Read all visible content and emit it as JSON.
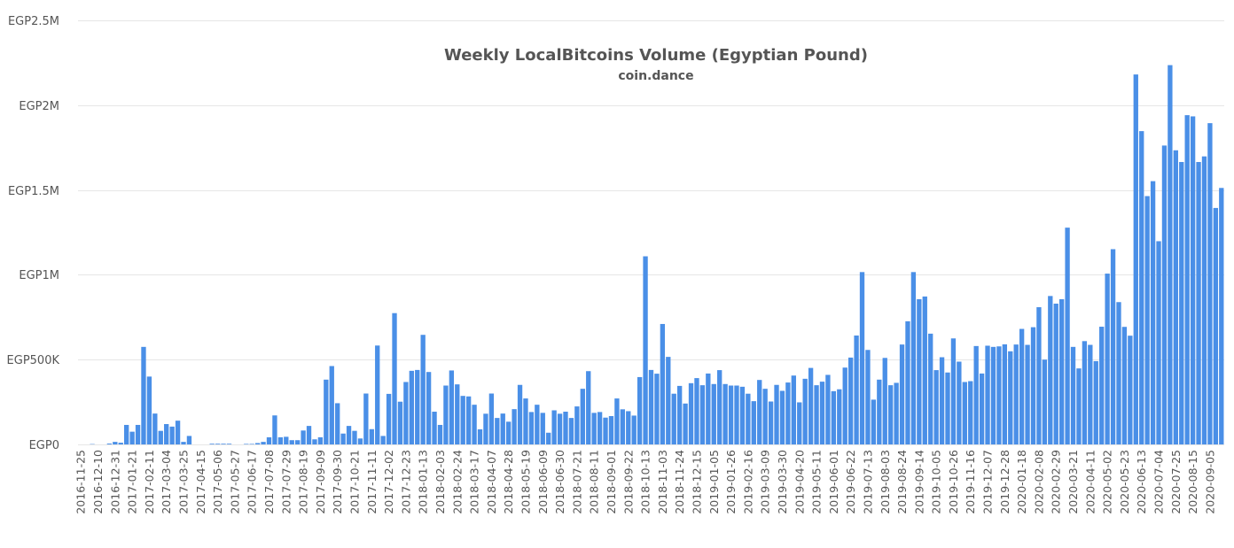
{
  "chart_data": {
    "type": "bar",
    "title": "Weekly LocalBitcoins Volume (Egyptian Pound)",
    "subtitle": "coin.dance",
    "xlabel": "",
    "ylabel": "",
    "ylim": [
      0,
      2500000
    ],
    "grid": true,
    "legend": "none",
    "bar_color": "#4a8fe7",
    "y_ticks": [
      {
        "value": 0,
        "label": "EGP0"
      },
      {
        "value": 500000,
        "label": "EGP500K"
      },
      {
        "value": 1000000,
        "label": "EGP1M"
      },
      {
        "value": 1500000,
        "label": "EGP1.5M"
      },
      {
        "value": 2000000,
        "label": "EGP2M"
      },
      {
        "value": 2500000,
        "label": "EGP2.5M"
      }
    ],
    "x_tick_labels": [
      "2016-11-25",
      "2016-12-10",
      "2016-12-31",
      "2017-01-21",
      "2017-02-11",
      "2017-03-04",
      "2017-03-25",
      "2017-04-15",
      "2017-05-06",
      "2017-05-27",
      "2017-06-17",
      "2017-07-08",
      "2017-07-29",
      "2017-08-19",
      "2017-09-09",
      "2017-09-30",
      "2017-10-21",
      "2017-11-11",
      "2017-12-02",
      "2017-12-23",
      "2018-01-13",
      "2018-02-03",
      "2018-02-24",
      "2018-03-17",
      "2018-04-07",
      "2018-04-28",
      "2018-05-19",
      "2018-06-09",
      "2018-06-30",
      "2018-07-21",
      "2018-08-11",
      "2018-09-01",
      "2018-09-22",
      "2018-10-13",
      "2018-11-03",
      "2018-11-24",
      "2018-12-15",
      "2019-01-05",
      "2019-01-26",
      "2019-02-16",
      "2019-03-09",
      "2019-03-30",
      "2019-04-20",
      "2019-05-11",
      "2019-06-01",
      "2019-06-22",
      "2019-07-13",
      "2019-08-03",
      "2019-08-24",
      "2019-09-14",
      "2019-10-05",
      "2019-10-26",
      "2019-11-16",
      "2019-12-07",
      "2019-12-28",
      "2020-01-18",
      "2020-02-08",
      "2020-02-29",
      "2020-03-21",
      "2020-04-11",
      "2020-05-02",
      "2020-05-23",
      "2020-06-13",
      "2020-07-04",
      "2020-07-25",
      "2020-08-15",
      "2020-09-05"
    ],
    "values": [
      0,
      0,
      2000,
      0,
      0,
      5000,
      15000,
      10000,
      115000,
      75000,
      115000,
      575000,
      400000,
      182000,
      80000,
      120000,
      105000,
      140000,
      15000,
      50000,
      0,
      0,
      0,
      4000,
      4000,
      4000,
      4000,
      0,
      0,
      3000,
      3000,
      8000,
      15000,
      42000,
      171000,
      42000,
      45000,
      25000,
      25000,
      82000,
      109000,
      30000,
      42000,
      382000,
      462000,
      243000,
      64000,
      109000,
      80000,
      35000,
      300000,
      90000,
      583000,
      50000,
      298000,
      774000,
      252000,
      368000,
      434000,
      439000,
      646000,
      427000,
      193000,
      115000,
      347000,
      436000,
      354000,
      286000,
      283000,
      234000,
      89000,
      181000,
      300000,
      156000,
      182000,
      134000,
      208000,
      351000,
      271000,
      191000,
      234000,
      186000,
      69000,
      201000,
      181000,
      193000,
      156000,
      224000,
      328000,
      432000,
      186000,
      191000,
      158000,
      167000,
      271000,
      207000,
      196000,
      170000,
      397000,
      1109000,
      439000,
      417000,
      710000,
      516000,
      299000,
      345000,
      241000,
      361000,
      391000,
      349000,
      418000,
      356000,
      438000,
      356000,
      347000,
      347000,
      340000,
      299000,
      255000,
      380000,
      328000,
      253000,
      351000,
      316000,
      365000,
      406000,
      248000,
      387000,
      451000,
      349000,
      370000,
      410000,
      314000,
      325000,
      453000,
      512000,
      642000,
      1016000,
      557000,
      264000,
      382000,
      510000,
      349000,
      363000,
      589000,
      726000,
      1016000,
      856000,
      872000,
      653000,
      438000,
      514000,
      424000,
      625000,
      488000,
      368000,
      373000,
      580000,
      418000,
      582000,
      575000,
      578000,
      590000,
      549000,
      589000,
      681000,
      587000,
      691000,
      809000,
      500000,
      875000,
      830000,
      856000,
      1278000,
      575000,
      448000,
      609000,
      587000,
      491000,
      694000,
      1007000,
      1151000,
      839000,
      693000,
      641000,
      2181000,
      1847000,
      1464000,
      1552000,
      1198000,
      1762000,
      2236000,
      1734000,
      1665000,
      1941000,
      1934000,
      1665000,
      1698000,
      1894000,
      1394000,
      1512000
    ]
  }
}
